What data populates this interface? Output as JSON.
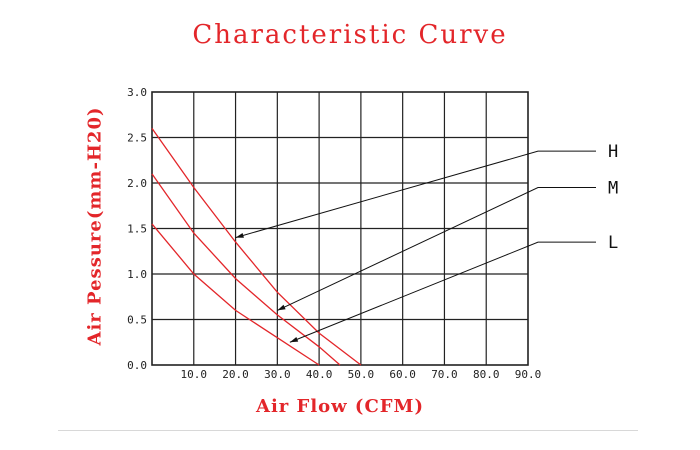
{
  "chart_data": {
    "type": "line",
    "title": "Characteristic Curve",
    "xlabel": "Air Flow (CFM)",
    "ylabel": "Air Pessure(mm-H20)",
    "xlim": [
      0,
      90
    ],
    "ylim": [
      0,
      3.0
    ],
    "x_ticks": [
      {
        "value": 10,
        "label": "10.0"
      },
      {
        "value": 20,
        "label": "20.0"
      },
      {
        "value": 30,
        "label": "30.0"
      },
      {
        "value": 40,
        "label": "40.0"
      },
      {
        "value": 50,
        "label": "50.0"
      },
      {
        "value": 60,
        "label": "60.0"
      },
      {
        "value": 70,
        "label": "70.0"
      },
      {
        "value": 80,
        "label": "80.0"
      },
      {
        "value": 90,
        "label": "90.0"
      }
    ],
    "y_ticks": [
      {
        "value": 0,
        "label": "0.0"
      },
      {
        "value": 0.5,
        "label": "0.5"
      },
      {
        "value": 1.0,
        "label": "1.0"
      },
      {
        "value": 1.5,
        "label": "1.5"
      },
      {
        "value": 2.0,
        "label": "2.0"
      },
      {
        "value": 2.5,
        "label": "2.5"
      },
      {
        "value": 3.0,
        "label": "3.0"
      }
    ],
    "grid": true,
    "colors": {
      "curve": "#e3262a",
      "grid": "#222222",
      "title": "#e3262a",
      "leader": "#111111"
    },
    "series": [
      {
        "name": "H",
        "points": [
          [
            0,
            2.6
          ],
          [
            10,
            1.95
          ],
          [
            20,
            1.35
          ],
          [
            30,
            0.8
          ],
          [
            40,
            0.35
          ],
          [
            50,
            0.0
          ]
        ],
        "annotation_point": [
          20,
          1.4
        ],
        "label_y": 2.35
      },
      {
        "name": "M",
        "points": [
          [
            0,
            2.1
          ],
          [
            10,
            1.45
          ],
          [
            20,
            0.95
          ],
          [
            30,
            0.55
          ],
          [
            40,
            0.2
          ],
          [
            45,
            0.0
          ]
        ],
        "annotation_point": [
          30,
          0.6
        ],
        "label_y": 1.95
      },
      {
        "name": "L",
        "points": [
          [
            0,
            1.55
          ],
          [
            10,
            1.0
          ],
          [
            20,
            0.6
          ],
          [
            30,
            0.3
          ],
          [
            40,
            0.0
          ]
        ],
        "annotation_point": [
          33,
          0.25
        ],
        "label_y": 1.35
      }
    ]
  }
}
